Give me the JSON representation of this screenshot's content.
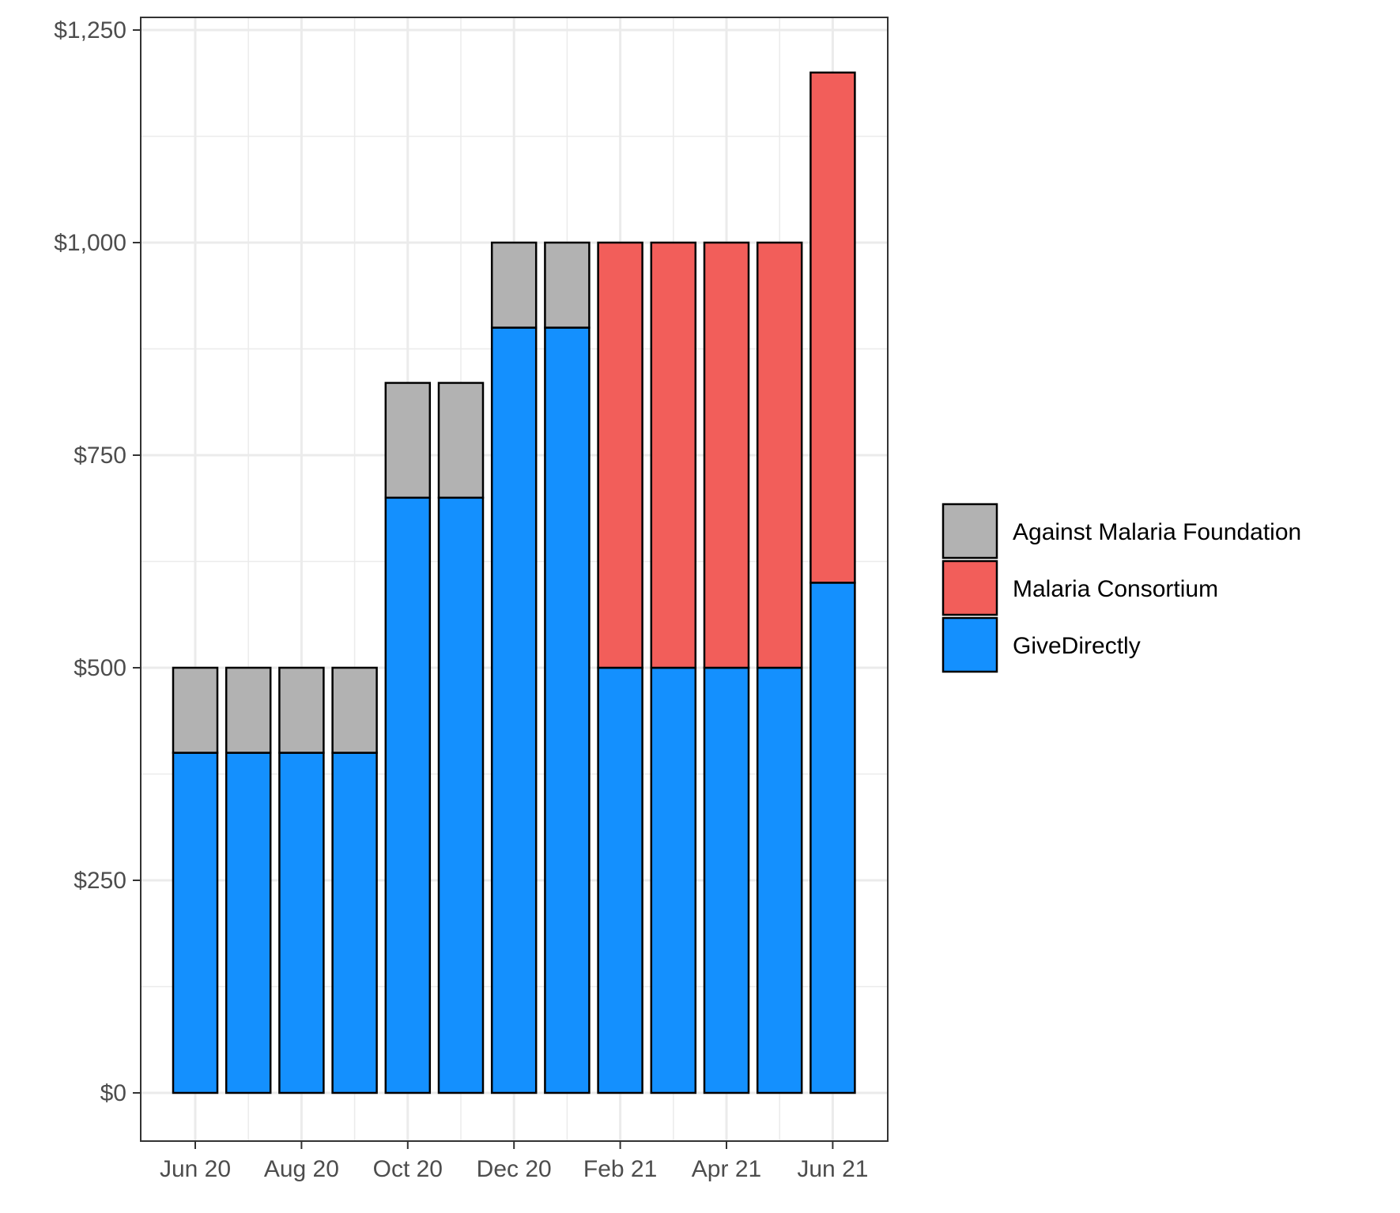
{
  "chart_data": {
    "type": "bar",
    "stacked": true,
    "categories": [
      "Jun 20",
      "Jul 20",
      "Aug 20",
      "Sep 20",
      "Oct 20",
      "Nov 20",
      "Dec 20",
      "Jan 21",
      "Feb 21",
      "Mar 21",
      "Apr 21",
      "May 21",
      "Jun 21"
    ],
    "x_tick_labels": [
      "Jun 20",
      "Aug 20",
      "Oct 20",
      "Dec 20",
      "Feb 21",
      "Apr 21",
      "Jun 21"
    ],
    "y_tick_labels": [
      "$0",
      "$250",
      "$500",
      "$750",
      "$1,000",
      "$1,250"
    ],
    "y_ticks": [
      0,
      250,
      500,
      750,
      1000,
      1250
    ],
    "ylim": [
      -55,
      1255
    ],
    "grid": true,
    "legend_position": "right",
    "series": [
      {
        "name": "GiveDirectly",
        "color": "#1490fe",
        "values": [
          400,
          400,
          400,
          400,
          700,
          700,
          900,
          900,
          500,
          500,
          500,
          500,
          600
        ]
      },
      {
        "name": "Malaria Consortium",
        "color": "#f25e5a",
        "values": [
          0,
          0,
          0,
          0,
          0,
          0,
          0,
          0,
          500,
          500,
          500,
          500,
          600
        ]
      },
      {
        "name": "Against Malaria Foundation",
        "color": "#b2b2b2",
        "values": [
          100,
          100,
          100,
          100,
          135,
          135,
          100,
          100,
          0,
          0,
          0,
          0,
          0
        ]
      }
    ],
    "legend_order": [
      "Against Malaria Foundation",
      "Malaria Consortium",
      "GiveDirectly"
    ]
  }
}
